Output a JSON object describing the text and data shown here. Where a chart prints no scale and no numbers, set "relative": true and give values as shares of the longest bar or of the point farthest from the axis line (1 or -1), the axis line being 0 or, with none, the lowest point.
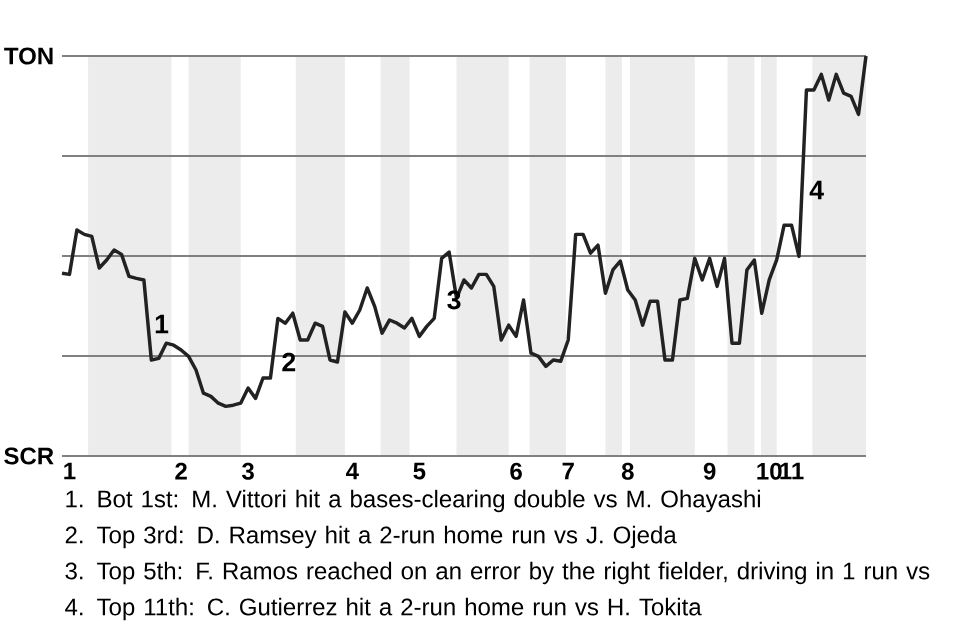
{
  "chart_data": {
    "type": "line",
    "relative": true,
    "categories": [
      null,
      "1",
      null,
      null,
      null,
      null,
      null,
      null,
      null,
      null,
      null,
      null,
      null,
      null,
      null,
      null,
      "2",
      null,
      null,
      null,
      null,
      null,
      null,
      null,
      null,
      "3",
      null,
      null,
      null,
      null,
      null,
      null,
      null,
      null,
      null,
      null,
      null,
      null,
      null,
      "4",
      null,
      null,
      null,
      null,
      null,
      null,
      null,
      null,
      "5",
      null,
      null,
      null,
      null,
      null,
      null,
      null,
      null,
      null,
      null,
      null,
      null,
      "6",
      null,
      null,
      null,
      null,
      null,
      null,
      "7",
      null,
      null,
      null,
      null,
      null,
      null,
      null,
      "8",
      null,
      null,
      null,
      null,
      null,
      null,
      null,
      null,
      null,
      null,
      "9",
      null,
      null,
      null,
      null,
      null,
      null,
      null,
      "10",
      null,
      null,
      "11",
      null,
      null,
      null,
      null,
      null,
      null,
      null,
      null,
      null,
      null
    ],
    "series": [
      {
        "color": "#222222",
        "values": [
          0.457,
          0.454,
          0.565,
          0.554,
          0.549,
          0.47,
          0.49,
          0.515,
          0.504,
          0.449,
          0.444,
          0.44,
          0.24,
          0.244,
          0.282,
          0.277,
          0.265,
          0.249,
          0.215,
          0.157,
          0.149,
          0.132,
          0.124,
          0.127,
          0.132,
          0.17,
          0.144,
          0.195,
          0.195,
          0.344,
          0.332,
          0.357,
          0.29,
          0.29,
          0.332,
          0.324,
          0.24,
          0.235,
          0.36,
          0.332,
          0.365,
          0.42,
          0.374,
          0.307,
          0.34,
          0.332,
          0.32,
          0.344,
          0.299,
          0.324,
          0.344,
          0.494,
          0.51,
          0.394,
          0.44,
          0.42,
          0.454,
          0.454,
          0.424,
          0.29,
          0.327,
          0.299,
          0.39,
          0.257,
          0.249,
          0.224,
          0.24,
          0.237,
          0.29,
          0.554,
          0.554,
          0.507,
          0.527,
          0.407,
          0.465,
          0.487,
          0.415,
          0.39,
          0.327,
          0.387,
          0.387,
          0.24,
          0.24,
          0.39,
          0.394,
          0.494,
          0.44,
          0.494,
          0.424,
          0.494,
          0.282,
          0.282,
          0.465,
          0.49,
          0.357,
          0.44,
          0.49,
          0.577,
          0.577,
          0.499,
          0.915,
          0.915,
          0.954,
          0.89,
          0.954,
          0.907,
          0.899,
          0.854,
          1
        ]
      }
    ],
    "ref_lines": [
      {
        "axis": "y",
        "value": 0,
        "color": "#808080"
      },
      {
        "axis": "y",
        "value": 0.25,
        "color": "#808080"
      },
      {
        "axis": "y",
        "value": 0.5,
        "color": "#808080"
      },
      {
        "axis": "y",
        "value": 0.75,
        "color": "#808080"
      },
      {
        "axis": "y",
        "value": 1,
        "color": "#808080"
      }
    ],
    "annotations": [
      "TON",
      "SCR",
      "1",
      "2",
      "3",
      "4",
      "1. Bot 1st: M. Vittori hit a bases-clearing double vs M. Ohayashi",
      "2. Top 3rd: D. Ramsey hit a 2-run home run vs J. Ojeda",
      "3. Top 5th: F. Ramos reached on an error by the right fielder, driving in 1 run vs",
      "4. Top 11th: C. Gutierrez hit a 2-run home run vs H. Tokita"
    ]
  }
}
